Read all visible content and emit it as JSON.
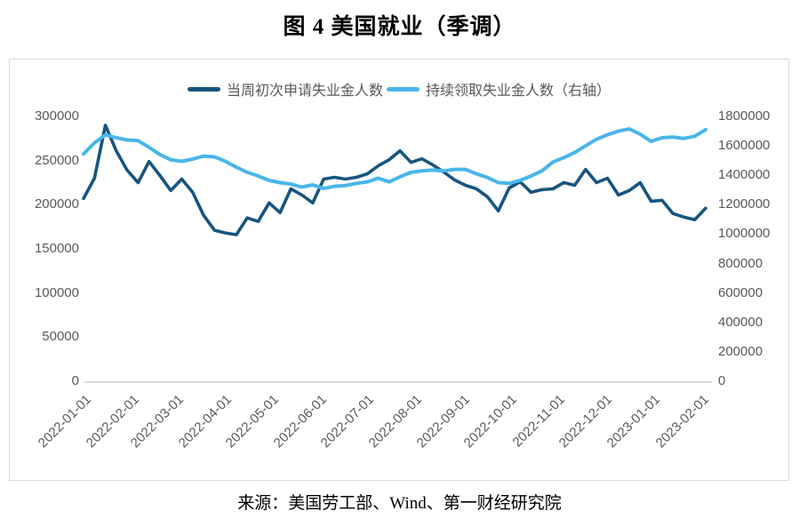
{
  "title": "图 4 美国就业（季调）",
  "source": "来源：美国劳工部、Wind、第一财经研究院",
  "colors": {
    "initial_claims_line": "#17557e",
    "continuing_claims_line": "#49b6e8",
    "axis_text": "#595959",
    "axis_line": "#d9d9d9",
    "panel_border": "#d9d9d9"
  },
  "legend": [
    {
      "label": "当周初次申请失业金人数",
      "color": "#17557e"
    },
    {
      "label": "持续领取失业金人数（右轴）",
      "color": "#49b6e8"
    }
  ],
  "left_axis": {
    "ticks": [
      300000,
      250000,
      200000,
      150000,
      100000,
      50000,
      0
    ],
    "max": 300000
  },
  "right_axis": {
    "ticks": [
      1800000,
      1600000,
      1400000,
      1200000,
      1000000,
      800000,
      600000,
      400000,
      200000,
      0
    ],
    "max": 1800000
  },
  "x_axis": {
    "labels": [
      "2022-01-01",
      "2022-02-01",
      "2022-03-01",
      "2022-04-01",
      "2022-05-01",
      "2022-06-01",
      "2022-07-01",
      "2022-08-01",
      "2022-09-01",
      "2022-10-01",
      "2022-11-01",
      "2022-12-01",
      "2023-01-01",
      "2023-02-01"
    ],
    "start_date": "2022-01-01",
    "weeks_span": 57
  },
  "chart_data": {
    "type": "line",
    "title": "图 4 美国就业（季调）",
    "x": [
      "2022-01-01",
      "2022-01-08",
      "2022-01-15",
      "2022-01-22",
      "2022-01-29",
      "2022-02-05",
      "2022-02-12",
      "2022-02-19",
      "2022-02-26",
      "2022-03-05",
      "2022-03-12",
      "2022-03-19",
      "2022-03-26",
      "2022-04-02",
      "2022-04-09",
      "2022-04-16",
      "2022-04-23",
      "2022-04-30",
      "2022-05-07",
      "2022-05-14",
      "2022-05-21",
      "2022-05-28",
      "2022-06-04",
      "2022-06-11",
      "2022-06-18",
      "2022-06-25",
      "2022-07-02",
      "2022-07-09",
      "2022-07-16",
      "2022-07-23",
      "2022-07-30",
      "2022-08-06",
      "2022-08-13",
      "2022-08-20",
      "2022-08-27",
      "2022-09-03",
      "2022-09-10",
      "2022-09-17",
      "2022-09-24",
      "2022-10-01",
      "2022-10-08",
      "2022-10-15",
      "2022-10-22",
      "2022-10-29",
      "2022-11-05",
      "2022-11-12",
      "2022-11-19",
      "2022-11-26",
      "2022-12-03",
      "2022-12-10",
      "2022-12-17",
      "2022-12-24",
      "2022-12-31",
      "2023-01-07",
      "2023-01-14",
      "2023-01-21",
      "2023-01-28",
      "2023-02-04"
    ],
    "series": [
      {
        "name": "当周初次申请失业金人数",
        "axis": "left",
        "color": "#17557e",
        "values": [
          207000,
          230000,
          290000,
          261000,
          239000,
          225000,
          249000,
          233000,
          216000,
          229000,
          214000,
          188000,
          171000,
          168000,
          166000,
          185000,
          181000,
          202000,
          191000,
          218000,
          211000,
          202000,
          229000,
          231000,
          229000,
          231000,
          235000,
          244000,
          251000,
          261000,
          248000,
          252000,
          245000,
          237000,
          228000,
          222000,
          218000,
          209000,
          193000,
          219000,
          226000,
          214000,
          217000,
          218000,
          225000,
          222000,
          240000,
          225000,
          230000,
          211000,
          216000,
          225000,
          204000,
          205000,
          190000,
          186000,
          183000,
          196000
        ]
      },
      {
        "name": "持续领取失业金人数（右轴）",
        "axis": "right",
        "color": "#49b6e8",
        "values": [
          1545000,
          1620000,
          1675000,
          1655000,
          1640000,
          1635000,
          1590000,
          1540000,
          1505000,
          1495000,
          1510000,
          1530000,
          1525000,
          1495000,
          1455000,
          1420000,
          1395000,
          1365000,
          1350000,
          1340000,
          1320000,
          1335000,
          1310000,
          1325000,
          1330000,
          1345000,
          1355000,
          1380000,
          1355000,
          1390000,
          1420000,
          1430000,
          1435000,
          1430000,
          1440000,
          1440000,
          1410000,
          1385000,
          1350000,
          1345000,
          1365000,
          1395000,
          1430000,
          1490000,
          1520000,
          1555000,
          1600000,
          1645000,
          1675000,
          1700000,
          1715000,
          1680000,
          1630000,
          1655000,
          1660000,
          1650000,
          1665000,
          1710000
        ]
      }
    ],
    "left_ylim": [
      0,
      300000
    ],
    "right_ylim": [
      0,
      1800000
    ],
    "grid": false,
    "legend_position": "top"
  }
}
